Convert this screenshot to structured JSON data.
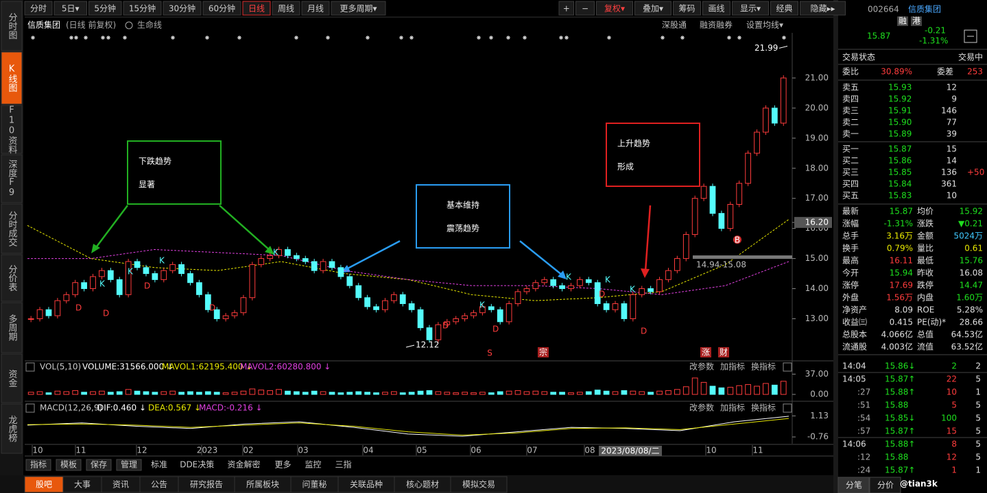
{
  "toolbar": {
    "periods": [
      "分时",
      "5日▾",
      "5分钟",
      "15分钟",
      "30分钟",
      "60分钟",
      "日线",
      "周线",
      "月线",
      "更多周期▾"
    ],
    "active": "日线",
    "tools": [
      "+",
      "−",
      "复权▾",
      "叠加▾",
      "筹码",
      "画线",
      "显示▾",
      "经典",
      "隐藏▸▸"
    ]
  },
  "sidebar": {
    "items": [
      "分时图",
      "K线图",
      "F10资料",
      "深度F9",
      "分时成交",
      "分价表",
      "多周期",
      "资金",
      "龙虎榜"
    ],
    "active": "K线图"
  },
  "chart_data": {
    "type": "candlestick",
    "title": "信质集团",
    "subtitle": "(日线 前复权)",
    "life_line": "生命线",
    "links": [
      "深股通",
      "融资融券",
      "设置均线▾"
    ],
    "closes": [
      13.0,
      13.3,
      13.1,
      13.6,
      13.8,
      14.2,
      14.0,
      14.4,
      14.6,
      14.3,
      13.8,
      14.9,
      14.7,
      14.5,
      14.3,
      14.6,
      14.8,
      14.5,
      14.2,
      13.8,
      13.3,
      13.0,
      13.1,
      13.2,
      13.7,
      14.8,
      15.0,
      15.1,
      15.3,
      15.1,
      15.0,
      14.9,
      14.6,
      14.9,
      14.7,
      14.4,
      14.1,
      13.7,
      13.4,
      13.3,
      13.6,
      13.8,
      13.5,
      13.3,
      12.7,
      12.3,
      12.8,
      12.9,
      13.0,
      13.1,
      13.2,
      13.4,
      13.3,
      12.9,
      13.5,
      13.9,
      14.0,
      14.2,
      14.3,
      14.1,
      14.0,
      14.1,
      14.3,
      14.2,
      13.5,
      13.3,
      13.5,
      13.0,
      13.8,
      14.0,
      13.9,
      14.3,
      14.6,
      15.0,
      15.8,
      17.0,
      17.4,
      16.5,
      16.0,
      16.8,
      17.5,
      18.5,
      19.2,
      20.0,
      19.5,
      21.0
    ],
    "up_color": "#ff3c3c",
    "down_color": "#54fcfc",
    "ylim": [
      11.6,
      22.5
    ],
    "yticks": [
      {
        "value": 13,
        "label": "13.00"
      },
      {
        "value": 14,
        "label": "14.00"
      },
      {
        "value": 15,
        "label": "15.00"
      },
      {
        "value": 16,
        "label": "16.00"
      },
      {
        "value": 17,
        "label": "17.00"
      },
      {
        "value": 18,
        "label": "18.00"
      },
      {
        "value": 19,
        "label": "19.00"
      },
      {
        "value": 20,
        "label": "20.00"
      },
      {
        "value": 21,
        "label": "21.00"
      }
    ],
    "x_labels": [
      "10",
      "11",
      "12",
      "2023",
      "02",
      "03",
      "04",
      "05",
      "06",
      "07",
      "08",
      "10",
      "11"
    ],
    "ma": [
      {
        "color": "#e8e800",
        "values": [
          16.1,
          15.0,
          14.7,
          14.6,
          14.9,
          14.5,
          14.3,
          13.8,
          13.6,
          13.7,
          13.9,
          14.8,
          16.3
        ]
      },
      {
        "color": "#e040e0",
        "values": [
          15.0,
          15.0,
          15.3,
          15.2,
          15.1,
          14.6,
          14.3,
          14.1,
          14.1,
          14.0,
          13.8,
          14.1,
          14.9
        ]
      }
    ],
    "high": 21.99,
    "low": 12.12,
    "range": "14.94-15.08",
    "price_marker": {
      "value": 16.2,
      "label": "16.20"
    },
    "date_tip": "2023/08/08/二",
    "signals": [
      "D",
      "D",
      "K",
      "K",
      "D",
      "K",
      "D",
      "K",
      "D",
      "K",
      "D",
      "K",
      "D",
      "K",
      "K",
      "D"
    ],
    "markers": [
      "S",
      "宗",
      "涨",
      "财",
      "B"
    ],
    "annotations": [
      {
        "lines": [
          "下跌趋势",
          "显著"
        ],
        "color": "#22b022"
      },
      {
        "lines": [
          "基本维持",
          "震荡趋势"
        ],
        "color": "#2a9df4"
      },
      {
        "lines": [
          "上升趋势",
          "形成"
        ],
        "color": "#e02020"
      }
    ],
    "volume": {
      "name": "VOL(5,10)",
      "items": [
        "VOLUME:31566.000 ↓",
        "MAVOL1:62195.400 ↓",
        "MAVOL2:60280.800 ↓"
      ],
      "values": [
        4,
        5,
        3,
        6,
        5,
        7,
        4,
        5,
        6,
        4,
        5,
        9,
        6,
        5,
        4,
        5,
        6,
        4,
        5,
        4,
        5,
        4,
        3,
        4,
        6,
        10,
        8,
        7,
        9,
        6,
        5,
        4,
        6,
        5,
        4,
        3,
        4,
        5,
        4,
        3,
        4,
        5,
        3,
        4,
        6,
        7,
        5,
        4,
        3,
        4,
        3,
        4,
        3,
        5,
        6,
        7,
        5,
        6,
        5,
        4,
        4,
        3,
        4,
        5,
        8,
        6,
        5,
        7,
        6,
        5,
        4,
        6,
        7,
        9,
        14,
        30,
        22,
        15,
        12,
        13,
        16,
        18,
        15,
        20,
        17,
        24
      ],
      "ylim": [
        0,
        40
      ],
      "yticks": [
        {
          "value": 37,
          "label": "37.00"
        },
        {
          "value": 0,
          "label": "0.00"
        }
      ]
    },
    "macd": {
      "name": "MACD(12,26,9)",
      "items": [
        "DIF:0.460 ↓",
        "DEA:0.567 ↓",
        "MACD:-0.216 ↓"
      ],
      "dif": [
        0.3,
        0.5,
        0.2,
        0.0,
        0.4,
        0.6,
        0.1,
        -0.5,
        -0.7,
        -0.3,
        0.1,
        0.0,
        -0.2,
        0.6,
        1.1
      ],
      "dea": [
        0.35,
        0.4,
        0.3,
        0.1,
        0.3,
        0.5,
        0.2,
        -0.3,
        -0.6,
        -0.4,
        0.0,
        0.05,
        -0.1,
        0.4,
        0.9
      ],
      "ylim": [
        -1,
        1.4
      ],
      "yticks": [
        1.13,
        -0.76
      ]
    },
    "panel_tools": [
      "改参数",
      "加指标",
      "换指标"
    ]
  },
  "bottom_toolbar": [
    "指标",
    "模板",
    "保存",
    "管理",
    "标准",
    "DDE决策",
    "资金解密",
    "更多",
    "监控",
    "三指"
  ],
  "bottom_tabs": [
    "股吧",
    "大事",
    "资讯",
    "公告",
    "研究报告",
    "所属板块",
    "问董秘",
    "关联品种",
    "核心题材",
    "模拟交易"
  ],
  "quote": {
    "code": "002664",
    "name": "信质集团",
    "tags": [
      "融",
      "港"
    ],
    "price": "15.87",
    "change": "-0.21",
    "pct": "-1.31%",
    "status": [
      "交易状态",
      "交易中"
    ],
    "ratio": [
      "委比",
      "30.89%",
      "委差",
      "253"
    ],
    "asks": [
      [
        "卖五",
        "15.93",
        "12"
      ],
      [
        "卖四",
        "15.92",
        "9"
      ],
      [
        "卖三",
        "15.91",
        "146"
      ],
      [
        "卖二",
        "15.90",
        "77"
      ],
      [
        "卖一",
        "15.89",
        "39"
      ]
    ],
    "bids": [
      [
        "买一",
        "15.87",
        "15"
      ],
      [
        "买二",
        "15.86",
        "14"
      ],
      [
        "买三",
        "15.85",
        "136",
        "+50"
      ],
      [
        "买四",
        "15.84",
        "361"
      ],
      [
        "买五",
        "15.83",
        "10"
      ]
    ],
    "stats": [
      [
        "最新",
        "15.87",
        "均价",
        "15.92"
      ],
      [
        "涨幅",
        "-1.31%",
        "涨跌",
        "▼0.21"
      ],
      [
        "总手",
        "3.16万",
        "金额",
        "5024万"
      ],
      [
        "换手",
        "0.79%",
        "量比",
        "0.61"
      ],
      [
        "最高",
        "16.11",
        "最低",
        "15.76"
      ],
      [
        "今开",
        "15.94",
        "昨收",
        "16.08"
      ],
      [
        "涨停",
        "17.69",
        "跌停",
        "14.47"
      ],
      [
        "外盘",
        "1.56万",
        "内盘",
        "1.60万"
      ],
      [
        "净资产",
        "8.09",
        "ROE",
        "5.28%"
      ],
      [
        "收益㈢",
        "0.415",
        "PE(动)*",
        "28.66"
      ],
      [
        "总股本",
        "4.066亿",
        "总值",
        "64.53亿"
      ],
      [
        "流通股",
        "4.003亿",
        "流值",
        "63.52亿"
      ]
    ],
    "stat_colors": [
      [
        "#1ee01e",
        "#1ee01e"
      ],
      [
        "#1ee01e",
        "#1ee01e"
      ],
      [
        "#e8e800",
        "#40c8ff"
      ],
      [
        "#e8e800",
        "#e8e800"
      ],
      [
        "#ff3c3c",
        "#1ee01e"
      ],
      [
        "#1ee01e",
        "#e0e0e0"
      ],
      [
        "#ff3c3c",
        "#1ee01e"
      ],
      [
        "#ff3c3c",
        "#1ee01e"
      ],
      [
        "#e0e0e0",
        "#e0e0e0"
      ],
      [
        "#e0e0e0",
        "#e0e0e0"
      ],
      [
        "#e0e0e0",
        "#e0e0e0"
      ],
      [
        "#e0e0e0",
        "#e0e0e0"
      ]
    ],
    "ticks": [
      [
        "14:04",
        "15.86↓",
        "2",
        "2"
      ],
      [
        "14:05",
        "15.87↑",
        "22",
        "5"
      ],
      [
        ":27",
        "15.88↑",
        "10",
        "1"
      ],
      [
        ":51",
        "15.88",
        "5",
        "5"
      ],
      [
        ":54",
        "15.85↓",
        "100",
        "5"
      ],
      [
        ":57",
        "15.87↑",
        "15",
        "5"
      ],
      [
        "14:06",
        "15.88↑",
        "8",
        "5"
      ],
      [
        ":12",
        "15.88",
        "12",
        "5"
      ],
      [
        ":24",
        "15.87↑",
        "1",
        "1"
      ]
    ],
    "tabs": [
      "分笔",
      "分价"
    ],
    "watermark": "@tian3k"
  }
}
